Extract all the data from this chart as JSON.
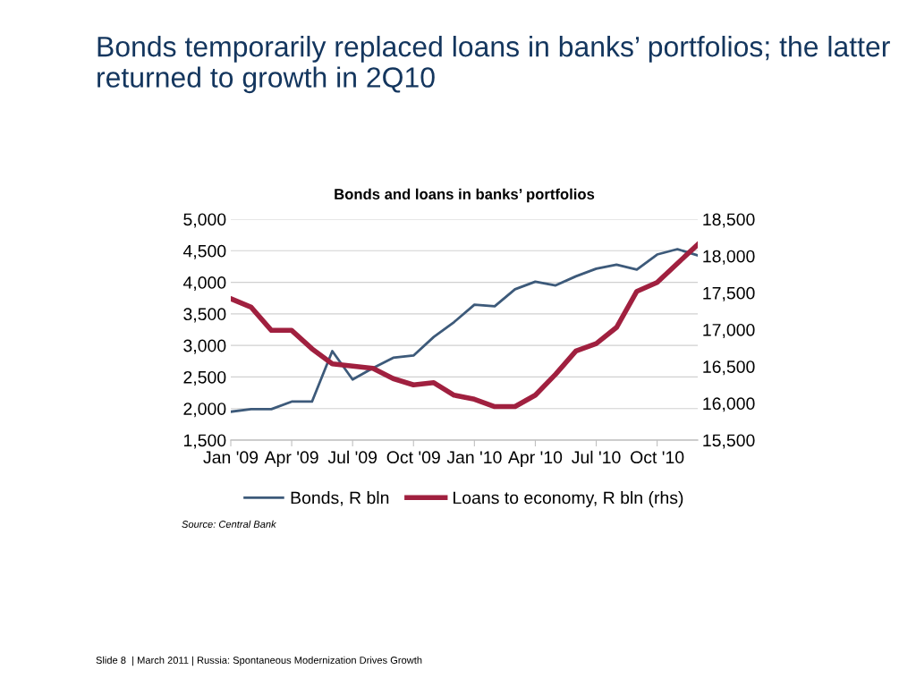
{
  "chart_data": {
    "type": "line",
    "title": "Bonds temporarily replaced loans in banks’ portfolios; the latter returned to growth in 2Q10",
    "subtitle": "Bonds and loans in banks’ portfolios",
    "categories": [
      "Jan '09",
      null,
      null,
      "Apr '09",
      null,
      null,
      "Jul '09",
      null,
      null,
      "Oct '09",
      null,
      null,
      "Jan '10",
      null,
      null,
      "Apr '10",
      null,
      null,
      "Jul '10",
      null,
      null,
      "Oct '10",
      null,
      null
    ],
    "series": [
      {
        "name": "Bonds, R bln",
        "color": "#3d5a7a",
        "values": [
          1950,
          1990,
          1990,
          2110,
          2110,
          2910,
          2460,
          2640,
          2805,
          2840,
          3135,
          3370,
          3645,
          3620,
          3890,
          4010,
          3950,
          4095,
          4215,
          4280,
          4200,
          4440,
          4525,
          4425
        ]
      },
      {
        "name": "Loans to economy, R bln (rhs)",
        "color": "#a0203f",
        "axis": "y2",
        "values": [
          17420,
          17305,
          16990,
          16990,
          16740,
          16535,
          16505,
          16475,
          16335,
          16250,
          16280,
          16110,
          16055,
          15955,
          15955,
          16110,
          16395,
          16710,
          16810,
          17030,
          17520,
          17640,
          17900,
          18155
        ]
      }
    ],
    "ylim": [
      1500,
      5000
    ],
    "yticks": [
      {
        "value": 1500,
        "label": "1,500"
      },
      {
        "value": 2000,
        "label": "2,000"
      },
      {
        "value": 2500,
        "label": "2,500"
      },
      {
        "value": 3000,
        "label": "3,000"
      },
      {
        "value": 3500,
        "label": "3,500"
      },
      {
        "value": 4000,
        "label": "4,000"
      },
      {
        "value": 4500,
        "label": "4,500"
      },
      {
        "value": 5000,
        "label": "5,000"
      }
    ],
    "y2lim": [
      15500,
      18500
    ],
    "y2ticks": [
      {
        "value": 15500,
        "label": "15,500"
      },
      {
        "value": 16000,
        "label": "16,000"
      },
      {
        "value": 16500,
        "label": "16,500"
      },
      {
        "value": 17000,
        "label": "17,000"
      },
      {
        "value": 17500,
        "label": "17,500"
      },
      {
        "value": 18000,
        "label": "18,000"
      },
      {
        "value": 18500,
        "label": "18,500"
      }
    ],
    "grid": "y",
    "legend": "bottom",
    "marker": "none",
    "line_style": "solid",
    "annotations": [
      "Source: Central Bank",
      "Slide 8  | March 2011 | Russia: Spontaneous Modernization Drives Growth"
    ]
  }
}
